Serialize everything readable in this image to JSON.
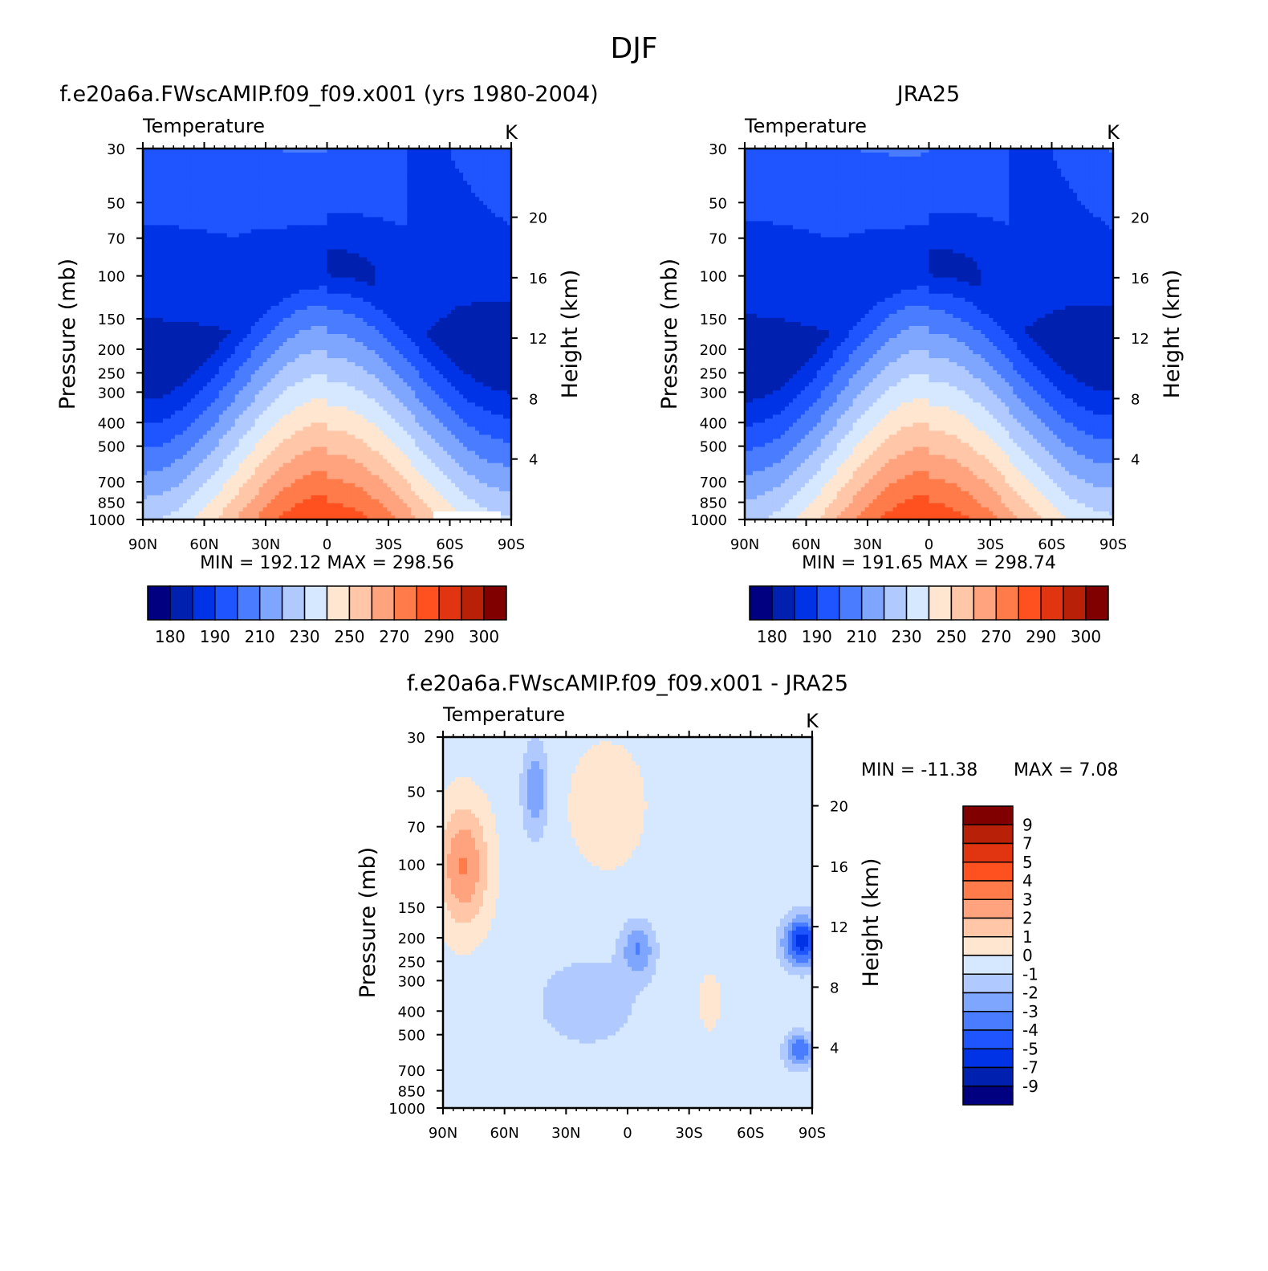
{
  "page": {
    "title": "DJF"
  },
  "colors": {
    "abs_scale": [
      "#000080",
      "#0020b0",
      "#0033e6",
      "#1f55ff",
      "#4a7cff",
      "#7fa6ff",
      "#b0c9ff",
      "#d6e8ff",
      "#ffe6d1",
      "#ffc6a8",
      "#ffa27e",
      "#ff7b4a",
      "#ff5020",
      "#e03510",
      "#b82008",
      "#800000"
    ],
    "diff_scale": [
      "#000080",
      "#0020b0",
      "#0033e6",
      "#1f55ff",
      "#4a7cff",
      "#7fa6ff",
      "#b0c9ff",
      "#d6e8ff",
      "#ffe6d1",
      "#ffc6a8",
      "#ffa27e",
      "#ff7b4a",
      "#ff5020",
      "#e03510",
      "#b82008",
      "#800000"
    ]
  },
  "chart_data": [
    {
      "id": "model",
      "type": "heatmap",
      "title": "f.e20a6a.FWscAMIP.f09_f09.x001 (yrs 1980-2004)",
      "subtitle_left": "Temperature",
      "subtitle_right": "K",
      "xlabel": "",
      "ylabel": "Pressure (mb)",
      "ylabel_right": "Height (km)",
      "x_ticks": [
        "90N",
        "60N",
        "30N",
        "0",
        "30S",
        "60S",
        "90S"
      ],
      "y_ticks": [
        "30",
        "50",
        "70",
        "100",
        "150",
        "200",
        "250",
        "300",
        "400",
        "500",
        "700",
        "850",
        "1000"
      ],
      "y_ticks_right": [
        "20",
        "16",
        "12",
        "8",
        "4"
      ],
      "min_max_text": "MIN = 192.12 MAX = 298.56",
      "colorbar_labels": [
        "180",
        "190",
        "210",
        "230",
        "250",
        "270",
        "290",
        "300"
      ],
      "colorbar_levels": [
        180,
        190,
        200,
        210,
        220,
        230,
        240,
        250,
        260,
        270,
        280,
        290,
        300,
        310,
        320
      ]
    },
    {
      "id": "obs",
      "type": "heatmap",
      "title": "JRA25",
      "subtitle_left": "Temperature",
      "subtitle_right": "K",
      "xlabel": "",
      "ylabel": "Pressure (mb)",
      "ylabel_right": "Height (km)",
      "x_ticks": [
        "90N",
        "60N",
        "30N",
        "0",
        "30S",
        "60S",
        "90S"
      ],
      "y_ticks": [
        "30",
        "50",
        "70",
        "100",
        "150",
        "200",
        "250",
        "300",
        "400",
        "500",
        "700",
        "850",
        "1000"
      ],
      "y_ticks_right": [
        "20",
        "16",
        "12",
        "8",
        "4"
      ],
      "min_max_text": "MIN = 191.65 MAX = 298.74",
      "colorbar_labels": [
        "180",
        "190",
        "210",
        "230",
        "250",
        "270",
        "290",
        "300"
      ]
    },
    {
      "id": "diff",
      "type": "heatmap",
      "title": "f.e20a6a.FWscAMIP.f09_f09.x001 - JRA25",
      "subtitle_left": "Temperature",
      "subtitle_right": "K",
      "xlabel": "",
      "ylabel": "Pressure (mb)",
      "ylabel_right": "Height (km)",
      "x_ticks": [
        "90N",
        "60N",
        "30N",
        "0",
        "30S",
        "60S",
        "90S"
      ],
      "y_ticks": [
        "30",
        "50",
        "70",
        "100",
        "150",
        "200",
        "250",
        "300",
        "400",
        "500",
        "700",
        "850",
        "1000"
      ],
      "y_ticks_right": [
        "20",
        "16",
        "12",
        "8",
        "4"
      ],
      "min_text": "MIN = -11.38",
      "max_text": "MAX =   7.08",
      "colorbar_labels": [
        "9",
        "7",
        "5",
        "4",
        "3",
        "2",
        "1",
        "0",
        "-1",
        "-2",
        "-3",
        "-4",
        "-5",
        "-7",
        "-9"
      ]
    }
  ]
}
